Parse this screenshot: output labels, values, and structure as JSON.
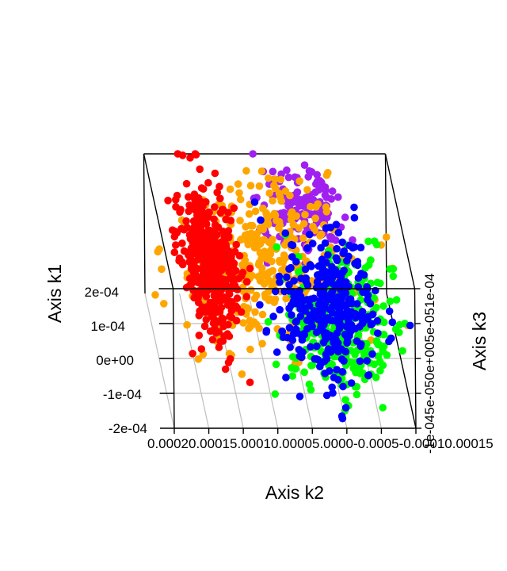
{
  "chart_data": {
    "type": "scatter",
    "subtype": "3d-scatter",
    "title": "",
    "xlabel": "Axis k2",
    "ylabel": "Axis k1",
    "zlabel": "Axis k3",
    "x_ticks": [
      "0.00020",
      "0.00015",
      "0.00010",
      "0.00005",
      "0.00000",
      "-0.00005",
      "-0.00010",
      "-0.00015"
    ],
    "x_ticks_rendered": "0.00020.00015.00010.00005.0000-0.0005-0.00010.00015",
    "y_ticks": [
      "-2e-04",
      "-1e-04",
      "0e+00",
      "1e-04",
      "2e-04"
    ],
    "y_ticks_rendered": [
      "-2e-04",
      "-1e-04",
      "0e+00",
      "1e-04",
      "2e-04"
    ],
    "z_ticks": [
      "-1e-04",
      "-5e-05",
      "0e+00",
      "5e-05",
      "1e-04"
    ],
    "z_ticks_rendered": "-1e-045e-050e+005e-051e-04",
    "grid": true,
    "colors": [
      "#ff0000",
      "#ffa500",
      "#a020f0",
      "#0000ff",
      "#00ff00"
    ],
    "series": [
      {
        "color": "#a020f0",
        "center": [
          -2e-05,
          0.00012,
          6e-05
        ],
        "spread": [
          3e-05,
          5e-05,
          3e-05
        ],
        "n": 150
      },
      {
        "color": "#ffa500",
        "center": [
          4e-05,
          4e-05,
          2e-05
        ],
        "spread": [
          7e-05,
          8e-05,
          5e-05
        ],
        "n": 380
      },
      {
        "color": "#00ff00",
        "center": [
          -6e-05,
          -6e-05,
          -2e-05
        ],
        "spread": [
          4e-05,
          7e-05,
          4e-05
        ],
        "n": 300
      },
      {
        "color": "#0000ff",
        "center": [
          -4e-05,
          -4e-05,
          -1e-05
        ],
        "spread": [
          4e-05,
          7e-05,
          4e-05
        ],
        "n": 320
      },
      {
        "color": "#ff0000",
        "center": [
          0.00012,
          4e-05,
          2e-05
        ],
        "spread": [
          2e-05,
          7e-05,
          4e-05
        ],
        "n": 420
      }
    ]
  }
}
